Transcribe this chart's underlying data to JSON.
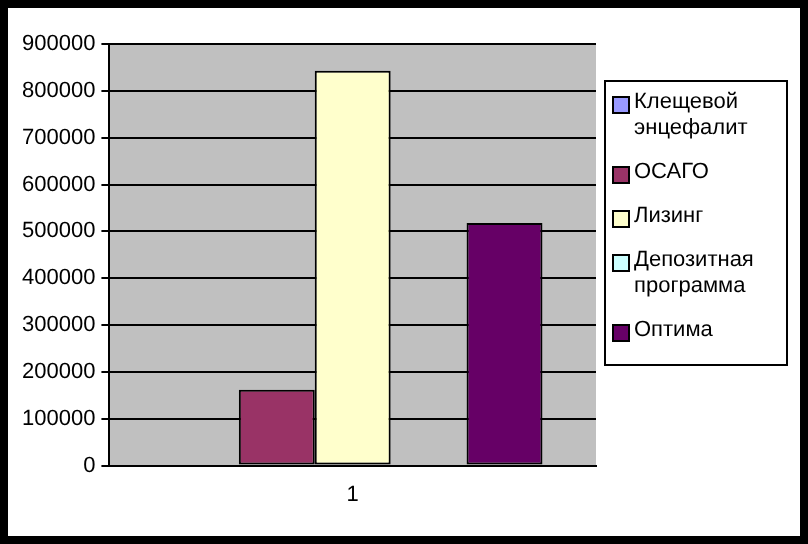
{
  "chart_data": {
    "type": "bar",
    "categories": [
      "1"
    ],
    "series": [
      {
        "name": "Клещевой энцефалит",
        "color": "#9999ff",
        "values": [
          0
        ]
      },
      {
        "name": "ОСАГО",
        "color": "#993366",
        "values": [
          162000
        ]
      },
      {
        "name": "Лизинг",
        "color": "#ffffcc",
        "values": [
          843000
        ]
      },
      {
        "name": "Депозитная программа",
        "color": "#ccffff",
        "values": [
          0
        ]
      },
      {
        "name": "Оптима",
        "color": "#660066",
        "values": [
          518000
        ]
      }
    ],
    "ylim": [
      0,
      900000
    ],
    "yticks": [
      0,
      100000,
      200000,
      300000,
      400000,
      500000,
      600000,
      700000,
      800000,
      900000
    ],
    "grid": "y",
    "legend": "right"
  }
}
